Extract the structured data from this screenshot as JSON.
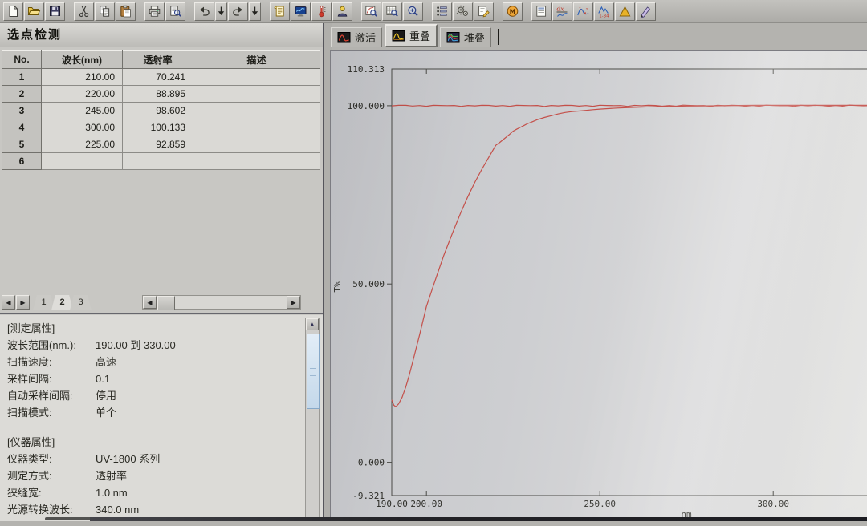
{
  "toolbar": {
    "groups": [
      [
        {
          "name": "new-file",
          "icon": "new-file"
        },
        {
          "name": "open-file",
          "icon": "open-file"
        },
        {
          "name": "save-file",
          "icon": "save-file"
        }
      ],
      [
        {
          "name": "cut",
          "icon": "cut"
        },
        {
          "name": "copy",
          "icon": "copy"
        },
        {
          "name": "paste",
          "icon": "paste"
        }
      ],
      [
        {
          "name": "print",
          "icon": "print"
        },
        {
          "name": "print-preview",
          "icon": "print-preview"
        }
      ],
      [
        {
          "name": "undo",
          "icon": "undo"
        },
        {
          "name": "undo-dropdown",
          "icon": "dropdown"
        },
        {
          "name": "redo",
          "icon": "redo"
        },
        {
          "name": "redo-dropdown",
          "icon": "dropdown"
        }
      ],
      [
        {
          "name": "method-script",
          "icon": "method-script"
        },
        {
          "name": "photometer",
          "icon": "photometer"
        },
        {
          "name": "baseline-correction",
          "icon": "baseline-correction"
        },
        {
          "name": "connect-user",
          "icon": "connect-user"
        }
      ],
      [
        {
          "name": "zoom-graph",
          "icon": "zoom-graph"
        },
        {
          "name": "zoom-sheet",
          "icon": "zoom-sheet"
        },
        {
          "name": "zoom-custom",
          "icon": "zoom-custom"
        }
      ],
      [
        {
          "name": "data-print",
          "icon": "data-print"
        },
        {
          "name": "settings-gears",
          "icon": "settings-gears"
        },
        {
          "name": "properties-edit",
          "icon": "properties-edit"
        }
      ],
      [
        {
          "name": "m-badge",
          "icon": "m-badge"
        }
      ],
      [
        {
          "name": "report-table",
          "icon": "report-table"
        },
        {
          "name": "derivative-dx",
          "icon": "derivative-dx"
        },
        {
          "name": "point-pick",
          "icon": "point-pick"
        },
        {
          "name": "peak-pick-134",
          "icon": "peak-pick-134"
        },
        {
          "name": "peak-area",
          "icon": "peak-area"
        },
        {
          "name": "annotate-pen",
          "icon": "annotate-pen"
        }
      ]
    ]
  },
  "left_panel": {
    "title": "选点检测",
    "table": {
      "headers": [
        "No.",
        "波长(nm)",
        "透射率",
        "描述"
      ],
      "rows": [
        [
          "1",
          "210.00",
          "70.241",
          ""
        ],
        [
          "2",
          "220.00",
          "88.895",
          ""
        ],
        [
          "3",
          "245.00",
          "98.602",
          ""
        ],
        [
          "4",
          "300.00",
          "100.133",
          ""
        ],
        [
          "5",
          "225.00",
          "92.859",
          ""
        ],
        [
          "6",
          "",
          "",
          ""
        ]
      ]
    },
    "page_tabs": {
      "tabs": [
        "1",
        "2",
        "3"
      ],
      "active": "2"
    },
    "properties": {
      "sections": [
        {
          "header": "[测定属性]",
          "rows": [
            {
              "label": "波长范围(nm.):",
              "value": "190.00 到 330.00"
            },
            {
              "label": "扫描速度:",
              "value": "高速"
            },
            {
              "label": "采样间隔:",
              "value": "0.1"
            },
            {
              "label": "自动采样间隔:",
              "value": "停用"
            },
            {
              "label": "扫描模式:",
              "value": "单个"
            }
          ]
        },
        {
          "header": "[仪器属性]",
          "rows": [
            {
              "label": "仪器类型:",
              "value": "UV-1800 系列"
            },
            {
              "label": "测定方式:",
              "value": "透射率"
            },
            {
              "label": "狭缝宽:",
              "value": "1.0 nm"
            },
            {
              "label": "光源转换波长:",
              "value": "340.0 nm"
            }
          ]
        }
      ]
    }
  },
  "chart_panel": {
    "tabs": [
      {
        "name": "active",
        "label": "激活",
        "icon": "spectrum-red",
        "active": false
      },
      {
        "name": "overlay",
        "label": "重叠",
        "icon": "spectrum-yellow",
        "active": true
      },
      {
        "name": "stack",
        "label": "堆叠",
        "icon": "spectrum-multi",
        "active": false
      }
    ]
  },
  "chart_data": {
    "type": "line",
    "title": "",
    "xlabel": "nm",
    "ylabel": "T%",
    "xlim": [
      190,
      330
    ],
    "ylim": [
      -9.321,
      110.313
    ],
    "grid": false,
    "x_ticks": [
      {
        "v": 190,
        "label": "190.00",
        "tick": false
      },
      {
        "v": 200,
        "label": "200.00",
        "tick": true
      },
      {
        "v": 250,
        "label": "250.00",
        "tick": true
      },
      {
        "v": 300,
        "label": "300.00",
        "tick": true
      }
    ],
    "y_ticks": [
      {
        "v": 110.313,
        "label": "110.313",
        "tick": false
      },
      {
        "v": 100.0,
        "label": "100.000",
        "tick": true
      },
      {
        "v": 50.0,
        "label": "50.000",
        "tick": true
      },
      {
        "v": 0.0,
        "label": "0.000",
        "tick": true
      },
      {
        "v": -9.321,
        "label": "-9.321",
        "tick": false
      }
    ],
    "series": [
      {
        "name": "baseline-100pct",
        "color": "#c4504a",
        "noise": 0.12,
        "points": [
          [
            190,
            100.0
          ],
          [
            330,
            100.0
          ]
        ]
      },
      {
        "name": "sample-scan",
        "color": "#c4504a",
        "points": [
          [
            190,
            17.5
          ],
          [
            190.6,
            16.0
          ],
          [
            191.2,
            15.6
          ],
          [
            192,
            16.4
          ],
          [
            193,
            18.3
          ],
          [
            194,
            21.0
          ],
          [
            195,
            24.3
          ],
          [
            196,
            28.0
          ],
          [
            197,
            31.8
          ],
          [
            198,
            35.7
          ],
          [
            199,
            39.7
          ],
          [
            200,
            43.7
          ],
          [
            201,
            46.6
          ],
          [
            202,
            49.5
          ],
          [
            203,
            52.4
          ],
          [
            204,
            55.2
          ],
          [
            205,
            58.0
          ],
          [
            206,
            60.5
          ],
          [
            207,
            63.0
          ],
          [
            208,
            65.5
          ],
          [
            209,
            67.9
          ],
          [
            210,
            70.241
          ],
          [
            212,
            74.6
          ],
          [
            214,
            78.6
          ],
          [
            216,
            82.2
          ],
          [
            218,
            85.6
          ],
          [
            220,
            88.895
          ],
          [
            221,
            89.6
          ],
          [
            222,
            90.4
          ],
          [
            223,
            91.2
          ],
          [
            224,
            92.0
          ],
          [
            225,
            92.859
          ],
          [
            226,
            93.4
          ],
          [
            227,
            93.9
          ],
          [
            228,
            94.4
          ],
          [
            229,
            94.9
          ],
          [
            230,
            95.3
          ],
          [
            232,
            96.1
          ],
          [
            234,
            96.7
          ],
          [
            236,
            97.2
          ],
          [
            238,
            97.7
          ],
          [
            240,
            98.1
          ],
          [
            242,
            98.35
          ],
          [
            245,
            98.602
          ],
          [
            248,
            98.9
          ],
          [
            250,
            99.05
          ],
          [
            255,
            99.35
          ],
          [
            260,
            99.55
          ],
          [
            265,
            99.7
          ],
          [
            270,
            99.8
          ],
          [
            275,
            99.9
          ],
          [
            280,
            99.95
          ],
          [
            285,
            100.0
          ],
          [
            290,
            100.05
          ],
          [
            295,
            100.1
          ],
          [
            300,
            100.133
          ],
          [
            310,
            100.1
          ],
          [
            320,
            100.1
          ],
          [
            330,
            100.1
          ]
        ]
      }
    ],
    "marked_points": [
      {
        "wavelength": 210.0,
        "transmittance": 70.241
      },
      {
        "wavelength": 220.0,
        "transmittance": 88.895
      },
      {
        "wavelength": 245.0,
        "transmittance": 98.602
      },
      {
        "wavelength": 300.0,
        "transmittance": 100.133
      },
      {
        "wavelength": 225.0,
        "transmittance": 92.859
      }
    ]
  },
  "colors": {
    "curve": "#c4504a",
    "scroll_thumb": "#cfe0f0",
    "panel_bg": "#c8c7c3"
  }
}
